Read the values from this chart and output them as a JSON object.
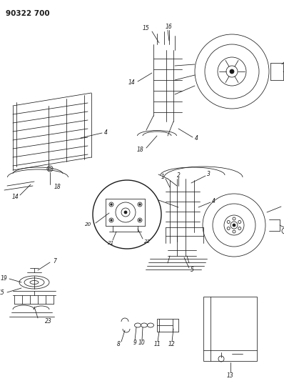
{
  "title": "90322 700",
  "bg_color": "#ffffff",
  "fg_color": "#1a1a1a",
  "fig_width": 3.98,
  "fig_height": 5.33,
  "dpi": 100,
  "title_fontsize": 7.5,
  "title_fontweight": "bold",
  "lw": 0.55
}
